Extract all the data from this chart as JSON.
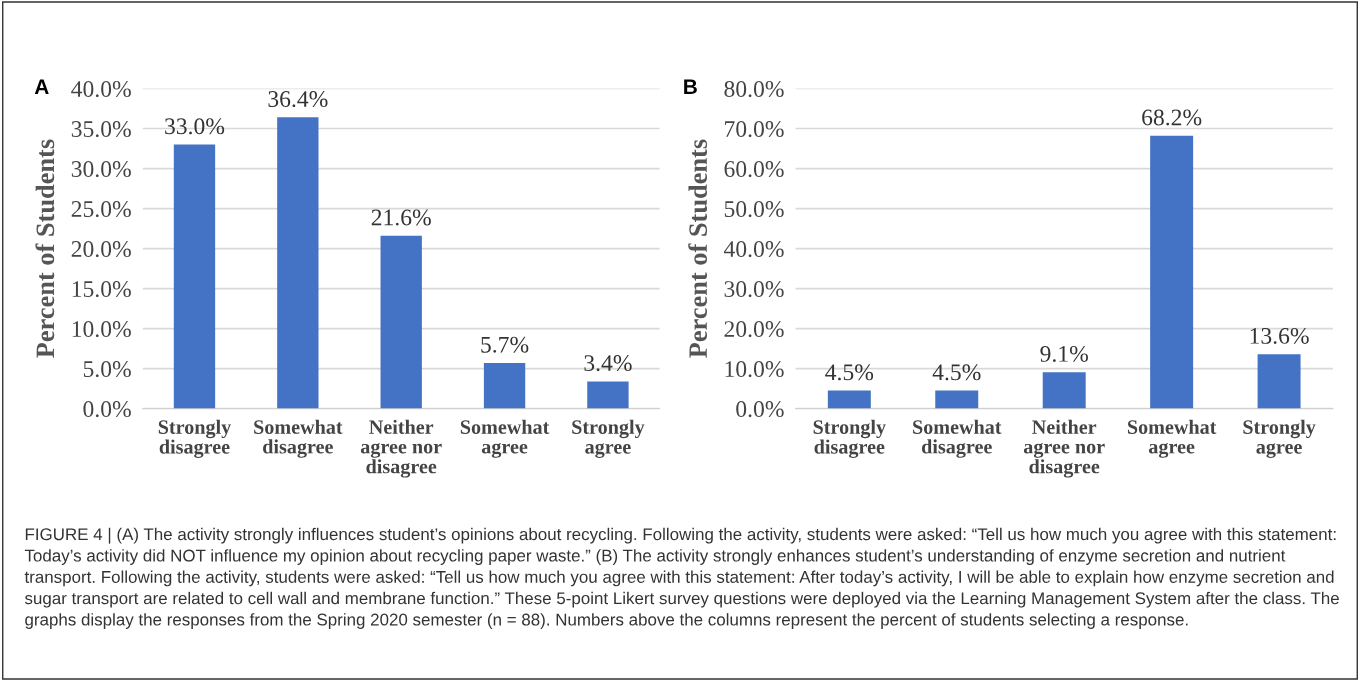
{
  "chart_data": [
    {
      "type": "bar",
      "title": "A",
      "ylabel": "Percent of Students",
      "categories": [
        "Strongly disagree",
        "Somewhat disagree",
        "Neither agree nor disagree",
        "Somewhat agree",
        "Strongly agree"
      ],
      "values": [
        33.0,
        36.4,
        21.6,
        5.7,
        3.4
      ],
      "value_labels": [
        "33.0%",
        "36.4%",
        "21.6%",
        "5.7%",
        "3.4%"
      ],
      "color": "#4472c4",
      "ylim": [
        0,
        40
      ],
      "yticks": [
        {
          "value": 0,
          "label": "0.0%"
        },
        {
          "value": 5,
          "label": "5.0%"
        },
        {
          "value": 10,
          "label": "10.0%"
        },
        {
          "value": 15,
          "label": "15.0%"
        },
        {
          "value": 20,
          "label": "20.0%"
        },
        {
          "value": 25,
          "label": "25.0%"
        },
        {
          "value": 30,
          "label": "30.0%"
        },
        {
          "value": 35,
          "label": "35.0%"
        },
        {
          "value": 40,
          "label": "40.0%"
        }
      ],
      "grid": "y"
    },
    {
      "type": "bar",
      "title": "B",
      "ylabel": "Percent of Students",
      "categories": [
        "Strongly disagree",
        "Somewhat disagree",
        "Neither agree nor disagree",
        "Somewhat agree",
        "Strongly agree"
      ],
      "values": [
        4.5,
        4.5,
        9.1,
        68.2,
        13.6
      ],
      "value_labels": [
        "4.5%",
        "4.5%",
        "9.1%",
        "68.2%",
        "13.6%"
      ],
      "color": "#4472c4",
      "ylim": [
        0,
        80
      ],
      "yticks": [
        {
          "value": 0,
          "label": "0.0%"
        },
        {
          "value": 10,
          "label": "10.0%"
        },
        {
          "value": 20,
          "label": "20.0%"
        },
        {
          "value": 30,
          "label": "30.0%"
        },
        {
          "value": 40,
          "label": "40.0%"
        },
        {
          "value": 50,
          "label": "50.0%"
        },
        {
          "value": 60,
          "label": "60.0%"
        },
        {
          "value": 70,
          "label": "70.0%"
        },
        {
          "value": 80,
          "label": "80.0%"
        }
      ],
      "grid": "y",
      "annotations": [
        "FIGURE 4 | (A) The activity strongly influences student’s opinions about recycling. Following the activity, students were asked: “Tell us how much you agree with this statement: Today’s activity did NOT influence my opinion about recycling paper waste.” (B) The activity strongly enhances student’s understanding of enzyme secretion and nutrient transport. Following the activity, students were asked: “Tell us how much you agree with this statement: After today’s activity, I will be able to explain how enzyme secretion and sugar transport are related to cell wall and membrane function.” These 5-point Likert survey questions were deployed via the Learning Management System after the class. The graphs display the responses from the Spring 2020 semester (n = 88). Numbers above the columns represent the percent of students selecting a response."
      ]
    }
  ]
}
